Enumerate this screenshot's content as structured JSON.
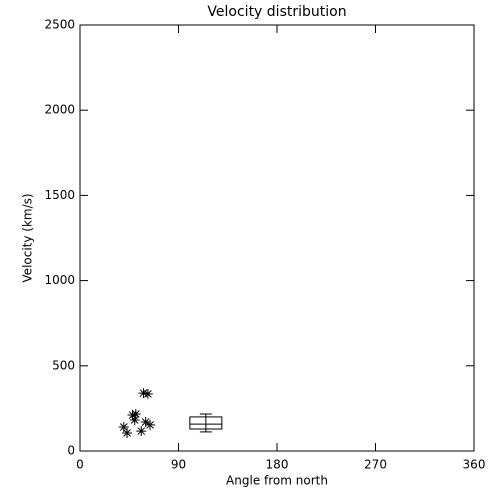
{
  "chart_data": {
    "type": "scatter",
    "title": "Velocity distribution",
    "x_label": "Angle from north",
    "y_label": "Velocity (km/s)",
    "x": [
      40,
      43,
      48,
      50,
      51,
      56,
      58,
      62,
      60,
      64
    ],
    "y": [
      141,
      106,
      211,
      182,
      217,
      117,
      340,
      335,
      170,
      153
    ],
    "marker": "asterisk",
    "color": "#000000",
    "box": {
      "x": 115,
      "min": 112,
      "q1": 129,
      "median": 158,
      "q3": 200,
      "max": 217
    },
    "xlim": [
      0,
      360
    ],
    "xticks": [
      0,
      90,
      180,
      270,
      360
    ],
    "ylim": [
      0,
      2500
    ],
    "yticks": [
      0,
      500,
      1000,
      1500,
      2000,
      2500
    ]
  }
}
